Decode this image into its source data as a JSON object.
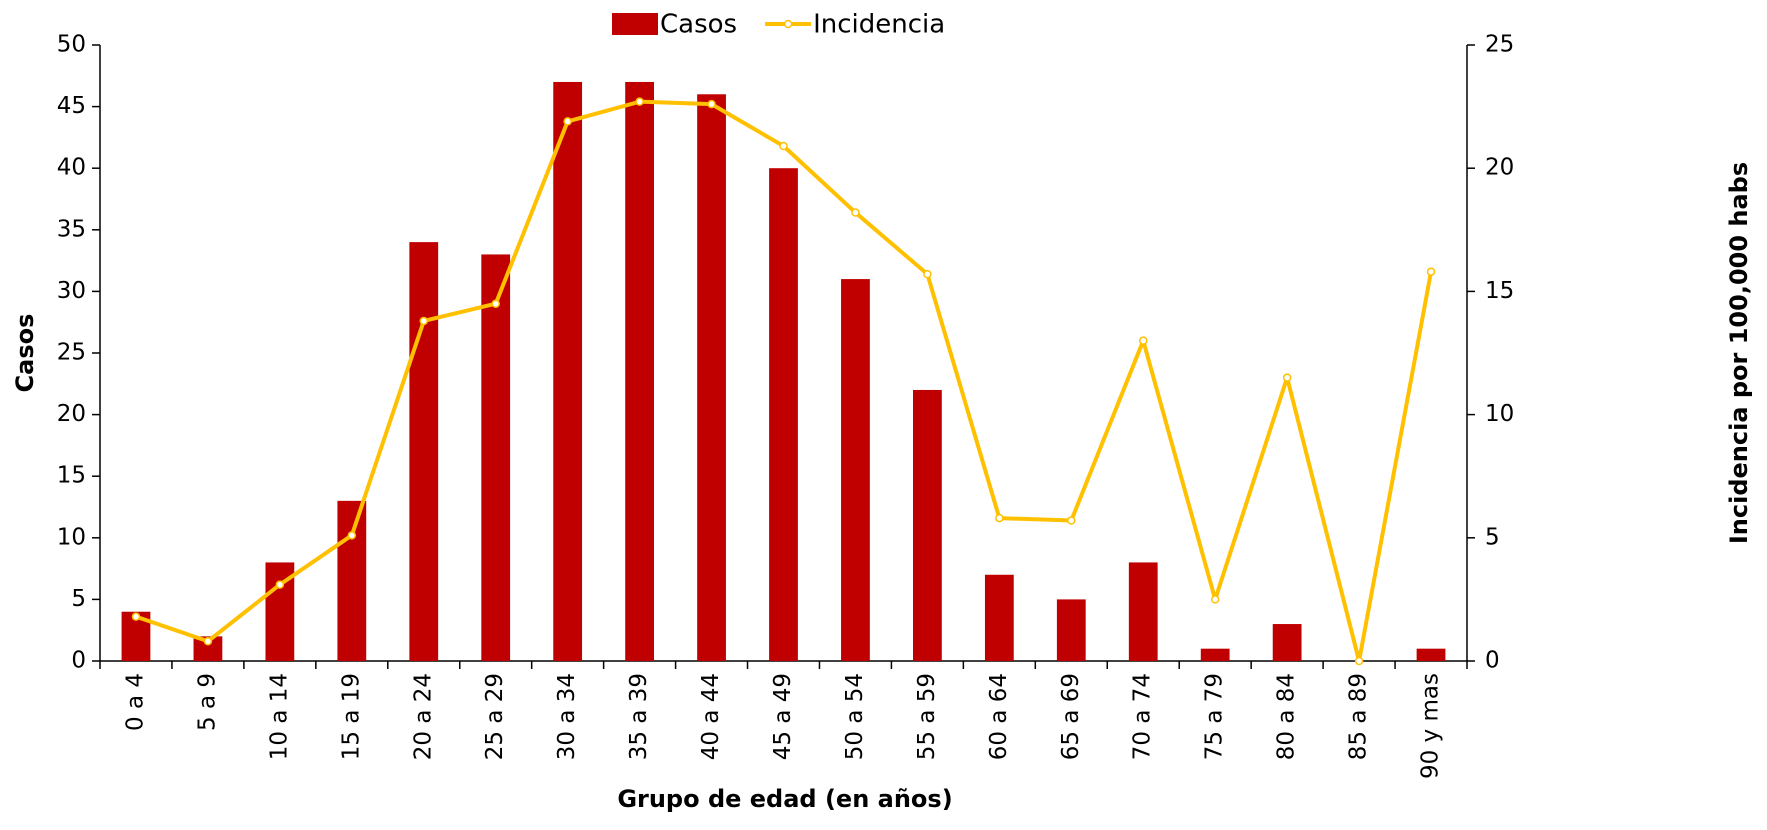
{
  "chart_data": {
    "type": "bar_line",
    "xlabel": "Grupo de edad (en años)",
    "ylabel": "Casos",
    "y2label": "Incidencia por 100,000 habs",
    "categories": [
      "0 a 4",
      "5 a 9",
      "10 a 14",
      "15 a 19",
      "20 a 24",
      "25 a 29",
      "30 a 34",
      "35 a 39",
      "40 a 44",
      "45 a 49",
      "50 a 54",
      "55 a 59",
      "60 a 64",
      "65 a 69",
      "70 a 74",
      "75 a 79",
      "80 a 84",
      "85 a 89",
      "90 y mas"
    ],
    "series": [
      {
        "name": "Casos",
        "type": "bar",
        "color": "#c00000",
        "values": [
          4,
          2,
          8,
          13,
          34,
          33,
          47,
          47,
          46,
          40,
          31,
          22,
          7,
          5,
          8,
          1,
          3,
          0,
          1
        ]
      },
      {
        "name": "Incidencia",
        "type": "line",
        "axis": "y2",
        "color": "#ffc000",
        "values": [
          1.8,
          0.8,
          3.1,
          5.1,
          13.8,
          14.5,
          21.9,
          22.7,
          22.6,
          20.9,
          18.2,
          15.7,
          5.8,
          5.7,
          13.0,
          2.5,
          11.5,
          0,
          15.8
        ]
      }
    ],
    "ylim": [
      0,
      50
    ],
    "yticks": [
      0,
      5,
      10,
      15,
      20,
      25,
      30,
      35,
      40,
      45,
      50
    ],
    "y2lim": [
      0,
      25
    ],
    "y2ticks": [
      0,
      5,
      10,
      15,
      20,
      25
    ],
    "legend": "top"
  }
}
